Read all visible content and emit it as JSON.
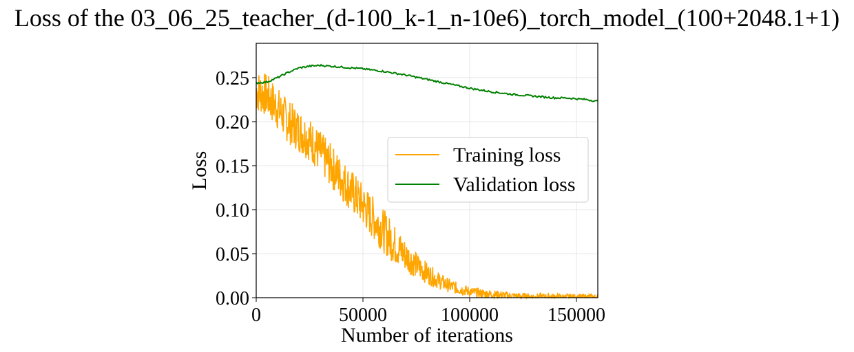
{
  "chart_data": {
    "type": "line",
    "title": "Loss of the 03_06_25_teacher_(d-100_k-1_n-10e6)_torch_model_(100+2048.1+1)",
    "xlabel": "Number of iterations",
    "ylabel": "Loss",
    "xlim": [
      0,
      160000
    ],
    "ylim": [
      0,
      0.289
    ],
    "xticks": [
      0,
      50000,
      100000,
      150000
    ],
    "yticks": [
      0.0,
      0.05,
      0.1,
      0.15,
      0.2,
      0.25
    ],
    "xtick_labels": [
      "0",
      "50000",
      "100000",
      "150000"
    ],
    "ytick_labels": [
      "0.00",
      "0.05",
      "0.10",
      "0.15",
      "0.20",
      "0.25"
    ],
    "grid": true,
    "legend_position": "center-right",
    "series": [
      {
        "name": "Training loss",
        "color": "#ffa500",
        "noise_band": 0.025,
        "x": [
          0,
          5000,
          10000,
          15000,
          20000,
          25000,
          30000,
          35000,
          40000,
          45000,
          50000,
          55000,
          60000,
          65000,
          70000,
          75000,
          80000,
          85000,
          90000,
          95000,
          100000,
          105000,
          110000,
          115000,
          120000,
          125000,
          130000,
          135000,
          140000,
          145000,
          150000,
          155000,
          160000
        ],
        "y": [
          0.235,
          0.23,
          0.215,
          0.2,
          0.19,
          0.18,
          0.165,
          0.15,
          0.135,
          0.12,
          0.105,
          0.09,
          0.075,
          0.06,
          0.048,
          0.037,
          0.028,
          0.02,
          0.014,
          0.01,
          0.007,
          0.005,
          0.004,
          0.003,
          0.002,
          0.0015,
          0.001,
          0.001,
          0.0008,
          0.0006,
          0.0005,
          0.0005,
          0.0005
        ]
      },
      {
        "name": "Validation loss",
        "color": "#008000",
        "x": [
          0,
          5000,
          10000,
          15000,
          20000,
          25000,
          30000,
          35000,
          40000,
          50000,
          60000,
          70000,
          80000,
          90000,
          100000,
          110000,
          120000,
          130000,
          140000,
          145000,
          150000,
          155000,
          160000
        ],
        "y": [
          0.244,
          0.245,
          0.25,
          0.256,
          0.261,
          0.263,
          0.264,
          0.263,
          0.262,
          0.26,
          0.257,
          0.253,
          0.248,
          0.243,
          0.238,
          0.234,
          0.231,
          0.229,
          0.227,
          0.227,
          0.226,
          0.225,
          0.223
        ]
      }
    ]
  }
}
